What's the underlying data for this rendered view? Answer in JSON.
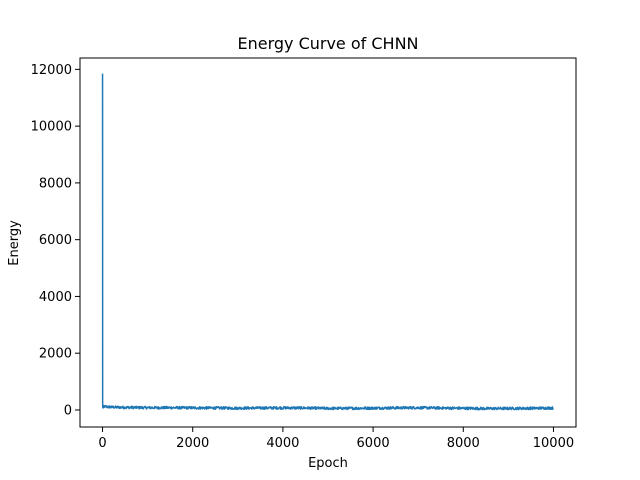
{
  "chart_data": {
    "type": "line",
    "title": "Energy Curve of CHNN",
    "xlabel": "Epoch",
    "ylabel": "Energy",
    "xlim": [
      -500,
      10500
    ],
    "ylim": [
      -600,
      12400
    ],
    "xticks": [
      0,
      2000,
      4000,
      6000,
      8000,
      10000
    ],
    "yticks": [
      0,
      2000,
      4000,
      6000,
      8000,
      10000,
      12000
    ],
    "grid": false,
    "legend": "none",
    "series": [
      {
        "color": "#1f77b4",
        "x": [
          0,
          1,
          2,
          5,
          20,
          50,
          100,
          200,
          300,
          500,
          800,
          1000,
          1500,
          2000,
          2500,
          3000,
          3500,
          4000,
          4500,
          5000,
          5500,
          6000,
          6500,
          7000,
          7500,
          8000,
          8500,
          9000,
          9500,
          10000
        ],
        "y": [
          11850,
          9000,
          300,
          80,
          100,
          120,
          110,
          100,
          95,
          90,
          85,
          80,
          80,
          75,
          70,
          65,
          70,
          75,
          70,
          55,
          60,
          65,
          75,
          80,
          70,
          60,
          50,
          55,
          60,
          70
        ],
        "noise_amplitude": 45
      }
    ]
  }
}
